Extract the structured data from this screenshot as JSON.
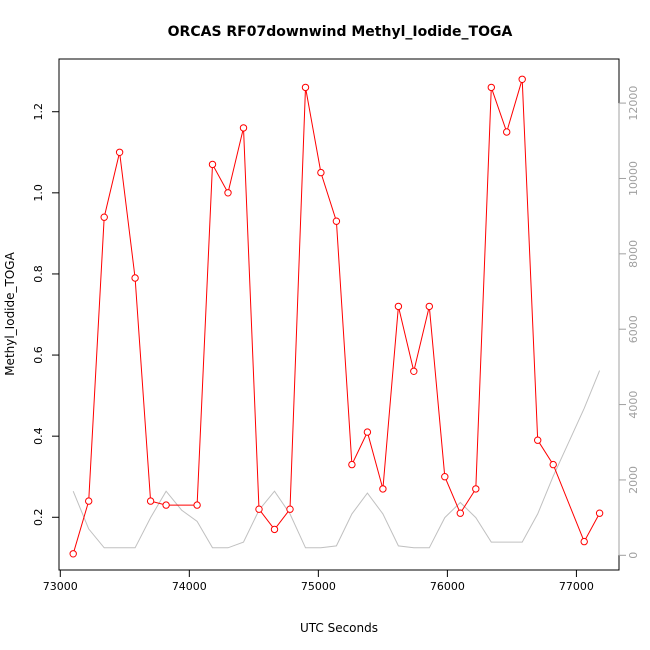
{
  "chart_data": {
    "type": "line",
    "title": "ORCAS RF07downwind Methyl_Iodide_TOGA",
    "xlabel": "UTC Seconds",
    "ylabel": "Methyl_Iodide_TOGA",
    "xlim": [
      72990,
      77330
    ],
    "ylim": [
      0.07,
      1.33
    ],
    "y2lim": [
      -390,
      13170
    ],
    "x_ticks": [
      73000,
      74000,
      75000,
      76000,
      77000
    ],
    "x_tick_labels": [
      "73000",
      "74000",
      "75000",
      "76000",
      "77000"
    ],
    "y_ticks": [
      0.2,
      0.4,
      0.6,
      0.8,
      1.0,
      1.2
    ],
    "y_tick_labels": [
      "0.2",
      "0.4",
      "0.6",
      "0.8",
      "1.0",
      "1.2"
    ],
    "y2_ticks": [
      0,
      2000,
      4000,
      6000,
      8000,
      10000,
      12000
    ],
    "y2_tick_labels": [
      "0",
      "2000",
      "4000",
      "6000",
      "8000",
      "10000",
      "12000"
    ],
    "colors": {
      "primary": "#ff0000",
      "secondary": "#c0c0c0",
      "axis": "#000000",
      "axis2": "#a0a0a0"
    },
    "series": [
      {
        "axis": "left",
        "style": "line-with-circle-markers",
        "color": "#ff0000",
        "x": [
          73100,
          73220,
          73340,
          73460,
          73580,
          73700,
          73820,
          74060,
          74180,
          74300,
          74420,
          74540,
          74660,
          74780,
          74900,
          75020,
          75140,
          75260,
          75380,
          75500,
          75620,
          75740,
          75860,
          75980,
          76100,
          76220,
          76340,
          76460,
          76580,
          76700,
          76820,
          77060,
          77180
        ],
        "values": [
          0.11,
          0.24,
          0.94,
          1.1,
          0.79,
          0.24,
          0.23,
          0.23,
          1.07,
          1.0,
          1.16,
          0.22,
          0.17,
          0.22,
          1.26,
          1.05,
          0.93,
          0.33,
          0.41,
          0.27,
          0.72,
          0.56,
          0.72,
          0.3,
          0.21,
          0.27,
          1.26,
          1.15,
          1.28,
          0.39,
          0.33,
          0.14,
          0.21
        ]
      },
      {
        "axis": "right",
        "style": "line",
        "color": "#c0c0c0",
        "x": [
          73100,
          73220,
          73340,
          73460,
          73580,
          73700,
          73820,
          73940,
          74060,
          74180,
          74300,
          74420,
          74540,
          74660,
          74780,
          74900,
          75020,
          75140,
          75260,
          75380,
          75500,
          75620,
          75740,
          75860,
          75980,
          76100,
          76220,
          76340,
          76460,
          76580,
          76700,
          76820,
          76940,
          77060,
          77180
        ],
        "values": [
          1700,
          700,
          200,
          200,
          200,
          1000,
          1700,
          1200,
          900,
          200,
          200,
          350,
          1200,
          1700,
          1100,
          200,
          200,
          250,
          1100,
          1650,
          1100,
          250,
          200,
          200,
          1000,
          1400,
          1000,
          350,
          350,
          350,
          1100,
          2100,
          3000,
          3900,
          4900
        ]
      }
    ]
  }
}
